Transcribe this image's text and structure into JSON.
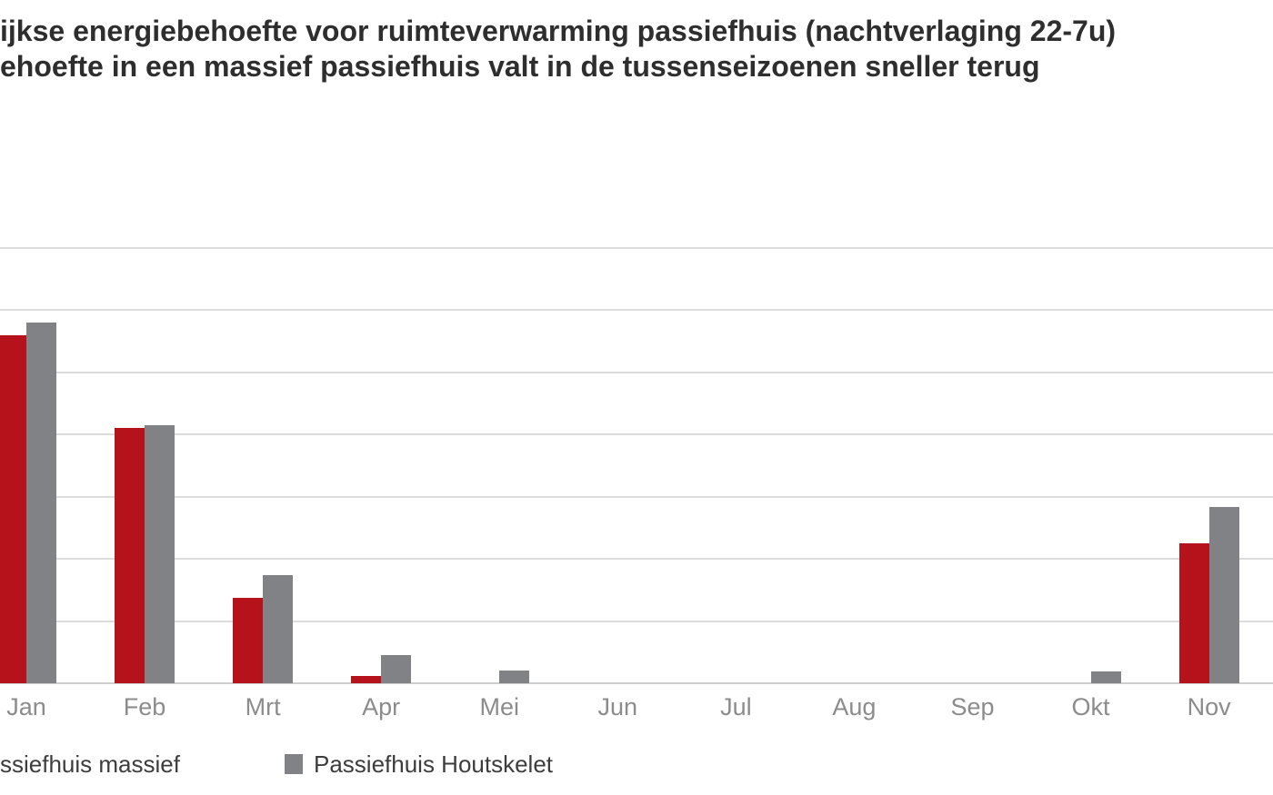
{
  "title": {
    "line1": "ijkse energiebehoefte voor ruimteverwarming passiefhuis (nachtverlaging 22-7u)",
    "line2": "ehoefte in een massief passiefhuis valt in de tussenseizoenen sneller terug"
  },
  "legend": {
    "items": [
      {
        "label": "ssiefhuis massief",
        "full_name": "Passiefhuis massief",
        "color": "#b5121b",
        "marker_visible": false
      },
      {
        "label": "Passiefhuis Houtskelet",
        "full_name": "Passiefhuis Houtskelet",
        "color": "#808285",
        "marker_visible": true
      }
    ]
  },
  "chart_data": {
    "type": "bar",
    "title": "ijkse energiebehoefte voor ruimteverwarming passiefhuis (nachtverlaging 22-7u) — ehoefte in een massief passiefhuis valt in de tussenseizoenen sneller terug",
    "categories": [
      "Jan",
      "Feb",
      "Mrt",
      "Apr",
      "Mei",
      "Jun",
      "Jul",
      "Aug",
      "Sep",
      "Okt",
      "Nov"
    ],
    "series": [
      {
        "name": "Passiefhuis massief",
        "color": "#b5121b",
        "values": [
          5.6,
          4.1,
          1.37,
          0.12,
          0,
          0,
          0,
          0,
          0,
          0,
          2.25
        ]
      },
      {
        "name": "Passiefhuis Houtskelet",
        "color": "#808285",
        "values": [
          5.8,
          4.15,
          1.74,
          0.45,
          0.2,
          0,
          0,
          0,
          0,
          0.19,
          2.84
        ]
      }
    ],
    "xlabel": "",
    "ylabel": "",
    "ylim": [
      0,
      7
    ],
    "y_axis_labels_visible": false,
    "grid": true,
    "gridline_count": 8,
    "legend_position": "bottom-left",
    "value_units": "gridline units (y-axis tick labels cropped out of view)"
  },
  "colors": {
    "background": "#ffffff",
    "gridline": "#dcdcdc",
    "axis_line": "#cfcfcf",
    "title_text": "#2e2e2e",
    "axis_label_text": "#8c8c8c",
    "legend_text": "#3d3d3d",
    "series_massief": "#b5121b",
    "series_houtskelet": "#808285"
  }
}
